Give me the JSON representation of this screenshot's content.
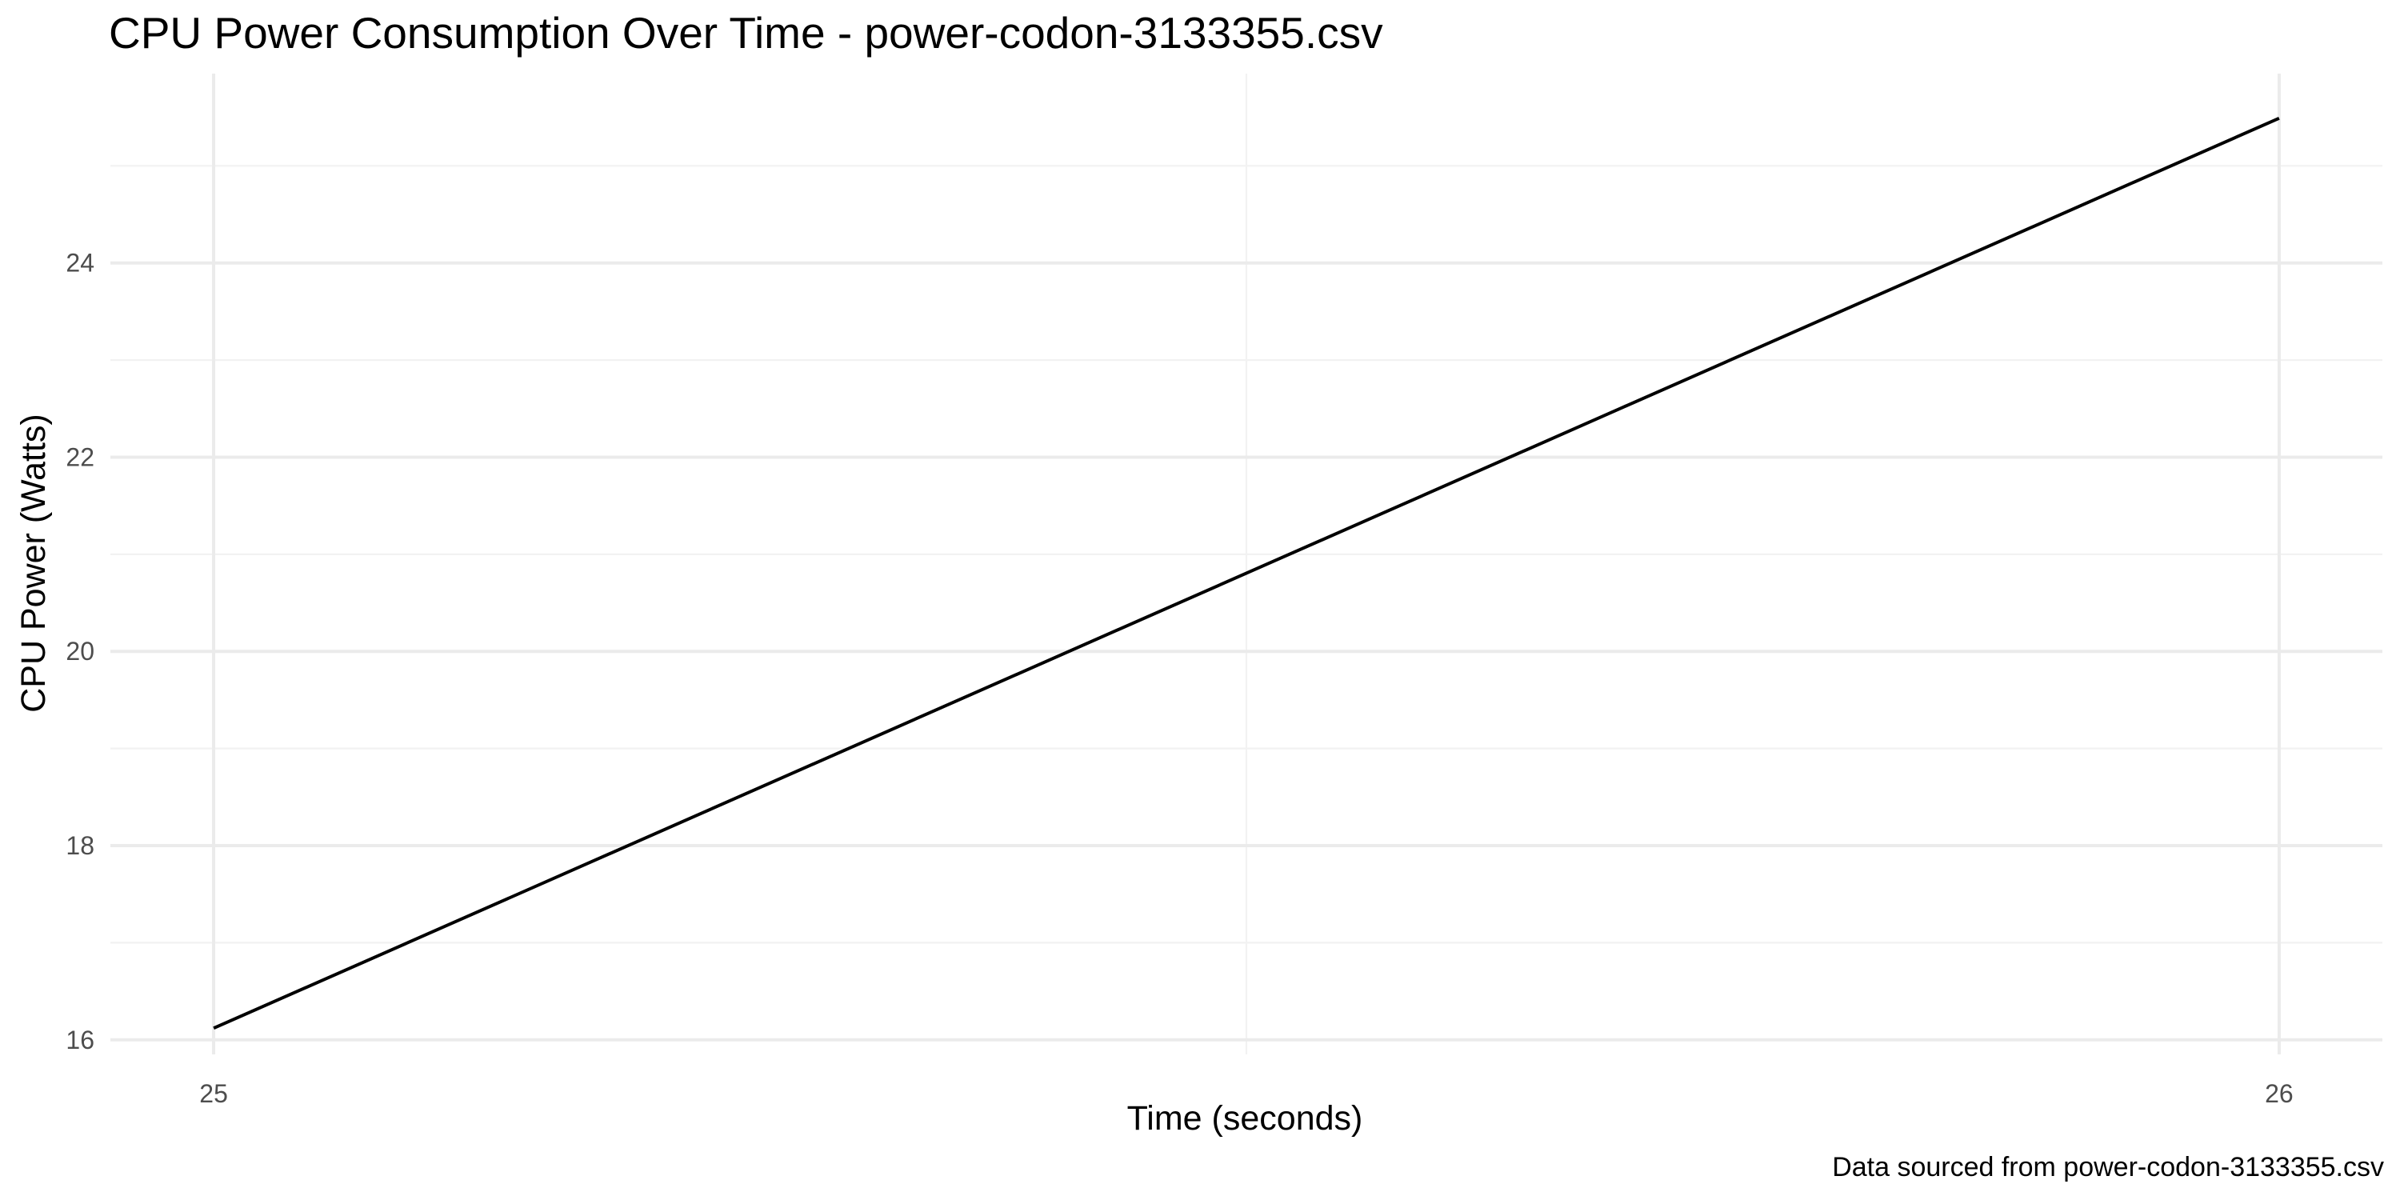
{
  "chart_data": {
    "type": "line",
    "title": "CPU Power Consumption Over Time - power-codon-3133355.csv",
    "xlabel": "Time (seconds)",
    "ylabel": "CPU Power (Watts)",
    "caption": "Data sourced from power-codon-3133355.csv",
    "xlim": [
      24.95,
      26.05
    ],
    "ylim": [
      15.85,
      25.95
    ],
    "x_ticks": [
      25,
      26
    ],
    "x_tick_labels": [
      "25",
      "26"
    ],
    "x_minor_ticks": [
      25.5
    ],
    "y_ticks": [
      16,
      18,
      20,
      22,
      24
    ],
    "y_tick_labels": [
      "16",
      "18",
      "20",
      "22",
      "24"
    ],
    "y_minor_ticks": [
      17,
      19,
      21,
      23,
      25
    ],
    "grid": true,
    "legend": "none",
    "series": [
      {
        "color": "#000000",
        "x": [
          25,
          26
        ],
        "y": [
          16.12,
          25.49
        ]
      }
    ]
  }
}
